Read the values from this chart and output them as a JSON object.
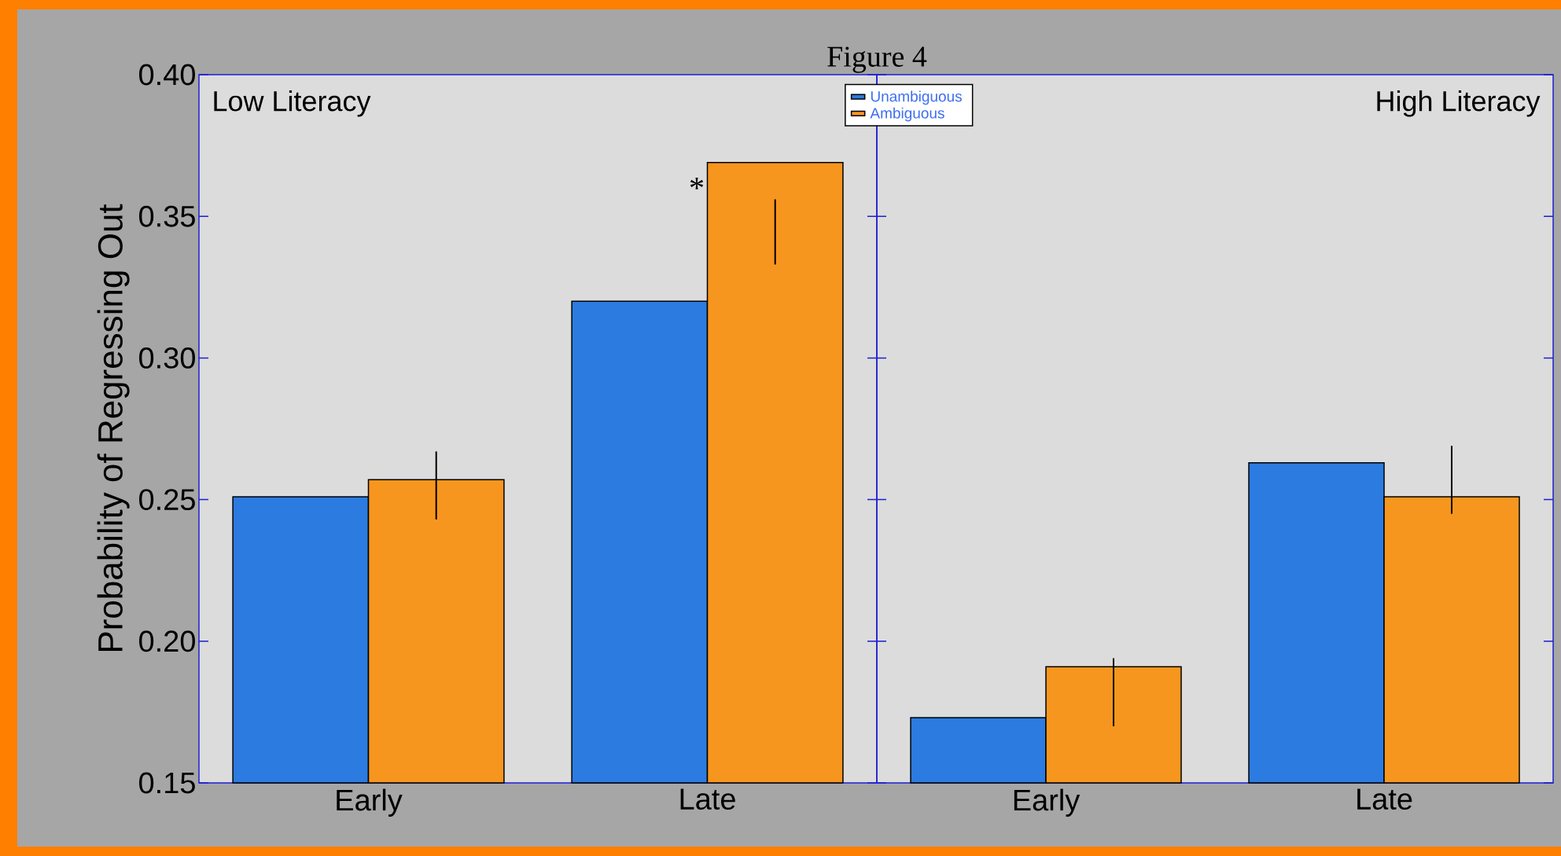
{
  "chart_data": [
    {
      "type": "bar",
      "title": "Low Literacy",
      "ylabel": "Probability of Regressing Out",
      "categories": [
        "Early",
        "Late"
      ],
      "series": [
        {
          "name": "Unambiguous",
          "color": "#2b7be0",
          "values": [
            0.251,
            0.32
          ]
        },
        {
          "name": "Ambiguous",
          "color": "#f7961e",
          "values": [
            0.257,
            0.369
          ],
          "errors": [
            [
              0.243,
              0.267
            ],
            [
              0.333,
              0.356
            ]
          ]
        }
      ],
      "ylim": [
        0.15,
        0.4
      ],
      "yticks": [
        0.15,
        {
          "value": 0.2,
          "label": "0.20"
        },
        0.25,
        {
          "value": 0.3,
          "label": "0.30"
        },
        0.35,
        {
          "value": 0.4,
          "label": "0.40"
        }
      ],
      "legend": "top right",
      "annotations": [
        "Figure 4",
        {
          "text": "*",
          "x": "Late",
          "y": 0.36
        }
      ]
    },
    {
      "type": "bar",
      "title": "High Literacy",
      "categories": [
        "Early",
        "Late"
      ],
      "series": [
        {
          "color": "#2b7be0",
          "values": [
            0.173,
            0.263
          ]
        },
        {
          "color": "#f7961e",
          "values": [
            0.191,
            0.251
          ],
          "errors": [
            [
              0.17,
              0.194
            ],
            [
              0.245,
              0.269
            ]
          ]
        }
      ],
      "ylim": [
        0.15,
        0.4
      ],
      "yticks": [
        0.15,
        0.2,
        0.25,
        0.3,
        0.35,
        0.4
      ],
      "tick_labels": "x"
    }
  ]
}
